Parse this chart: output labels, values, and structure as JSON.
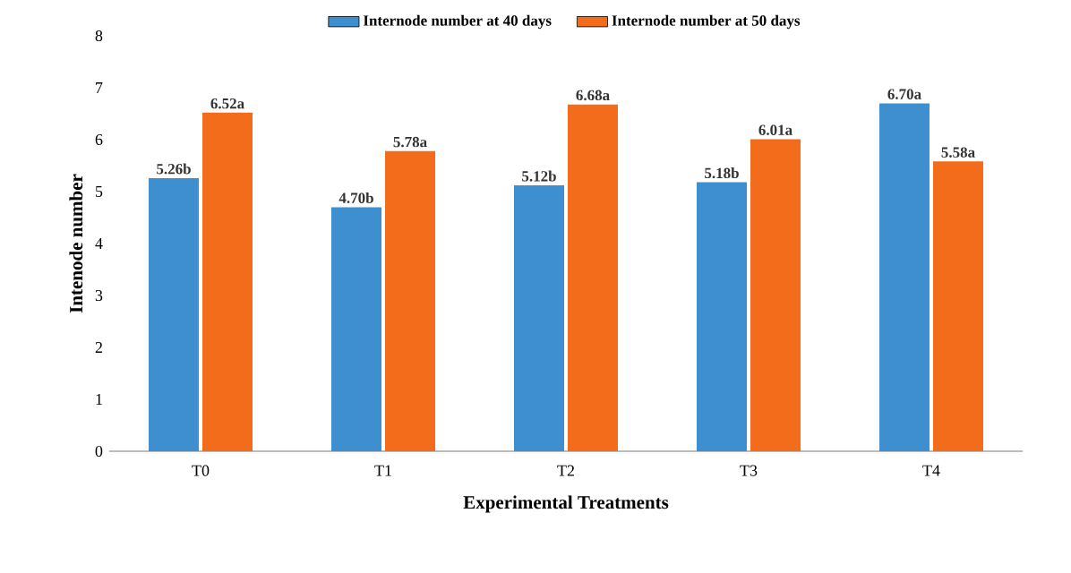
{
  "chart_data": {
    "type": "bar",
    "xlabel": "Experimental Treatments",
    "ylabel": "Intenode number",
    "categories": [
      "T0",
      "T1",
      "T2",
      "T3",
      "T4"
    ],
    "series": [
      {
        "name": "Internode number at 40 days",
        "color": "#3d8fd0",
        "values": [
          5.26,
          4.7,
          5.12,
          5.18,
          6.7
        ],
        "value_labels": [
          "5.26b",
          "4.70b",
          "5.12b",
          "5.18b",
          "6.70a"
        ]
      },
      {
        "name": "Internode number at 50 days",
        "color": "#f36c1c",
        "values": [
          6.52,
          5.78,
          6.68,
          6.01,
          5.58
        ],
        "value_labels": [
          "6.52a",
          "5.78a",
          "6.68a",
          "6.01a",
          "5.58a"
        ]
      }
    ],
    "ylim": [
      0,
      8
    ],
    "yticks": [
      0,
      1,
      2,
      3,
      4,
      5,
      6,
      7,
      8
    ],
    "grid": false,
    "legend": "top"
  }
}
